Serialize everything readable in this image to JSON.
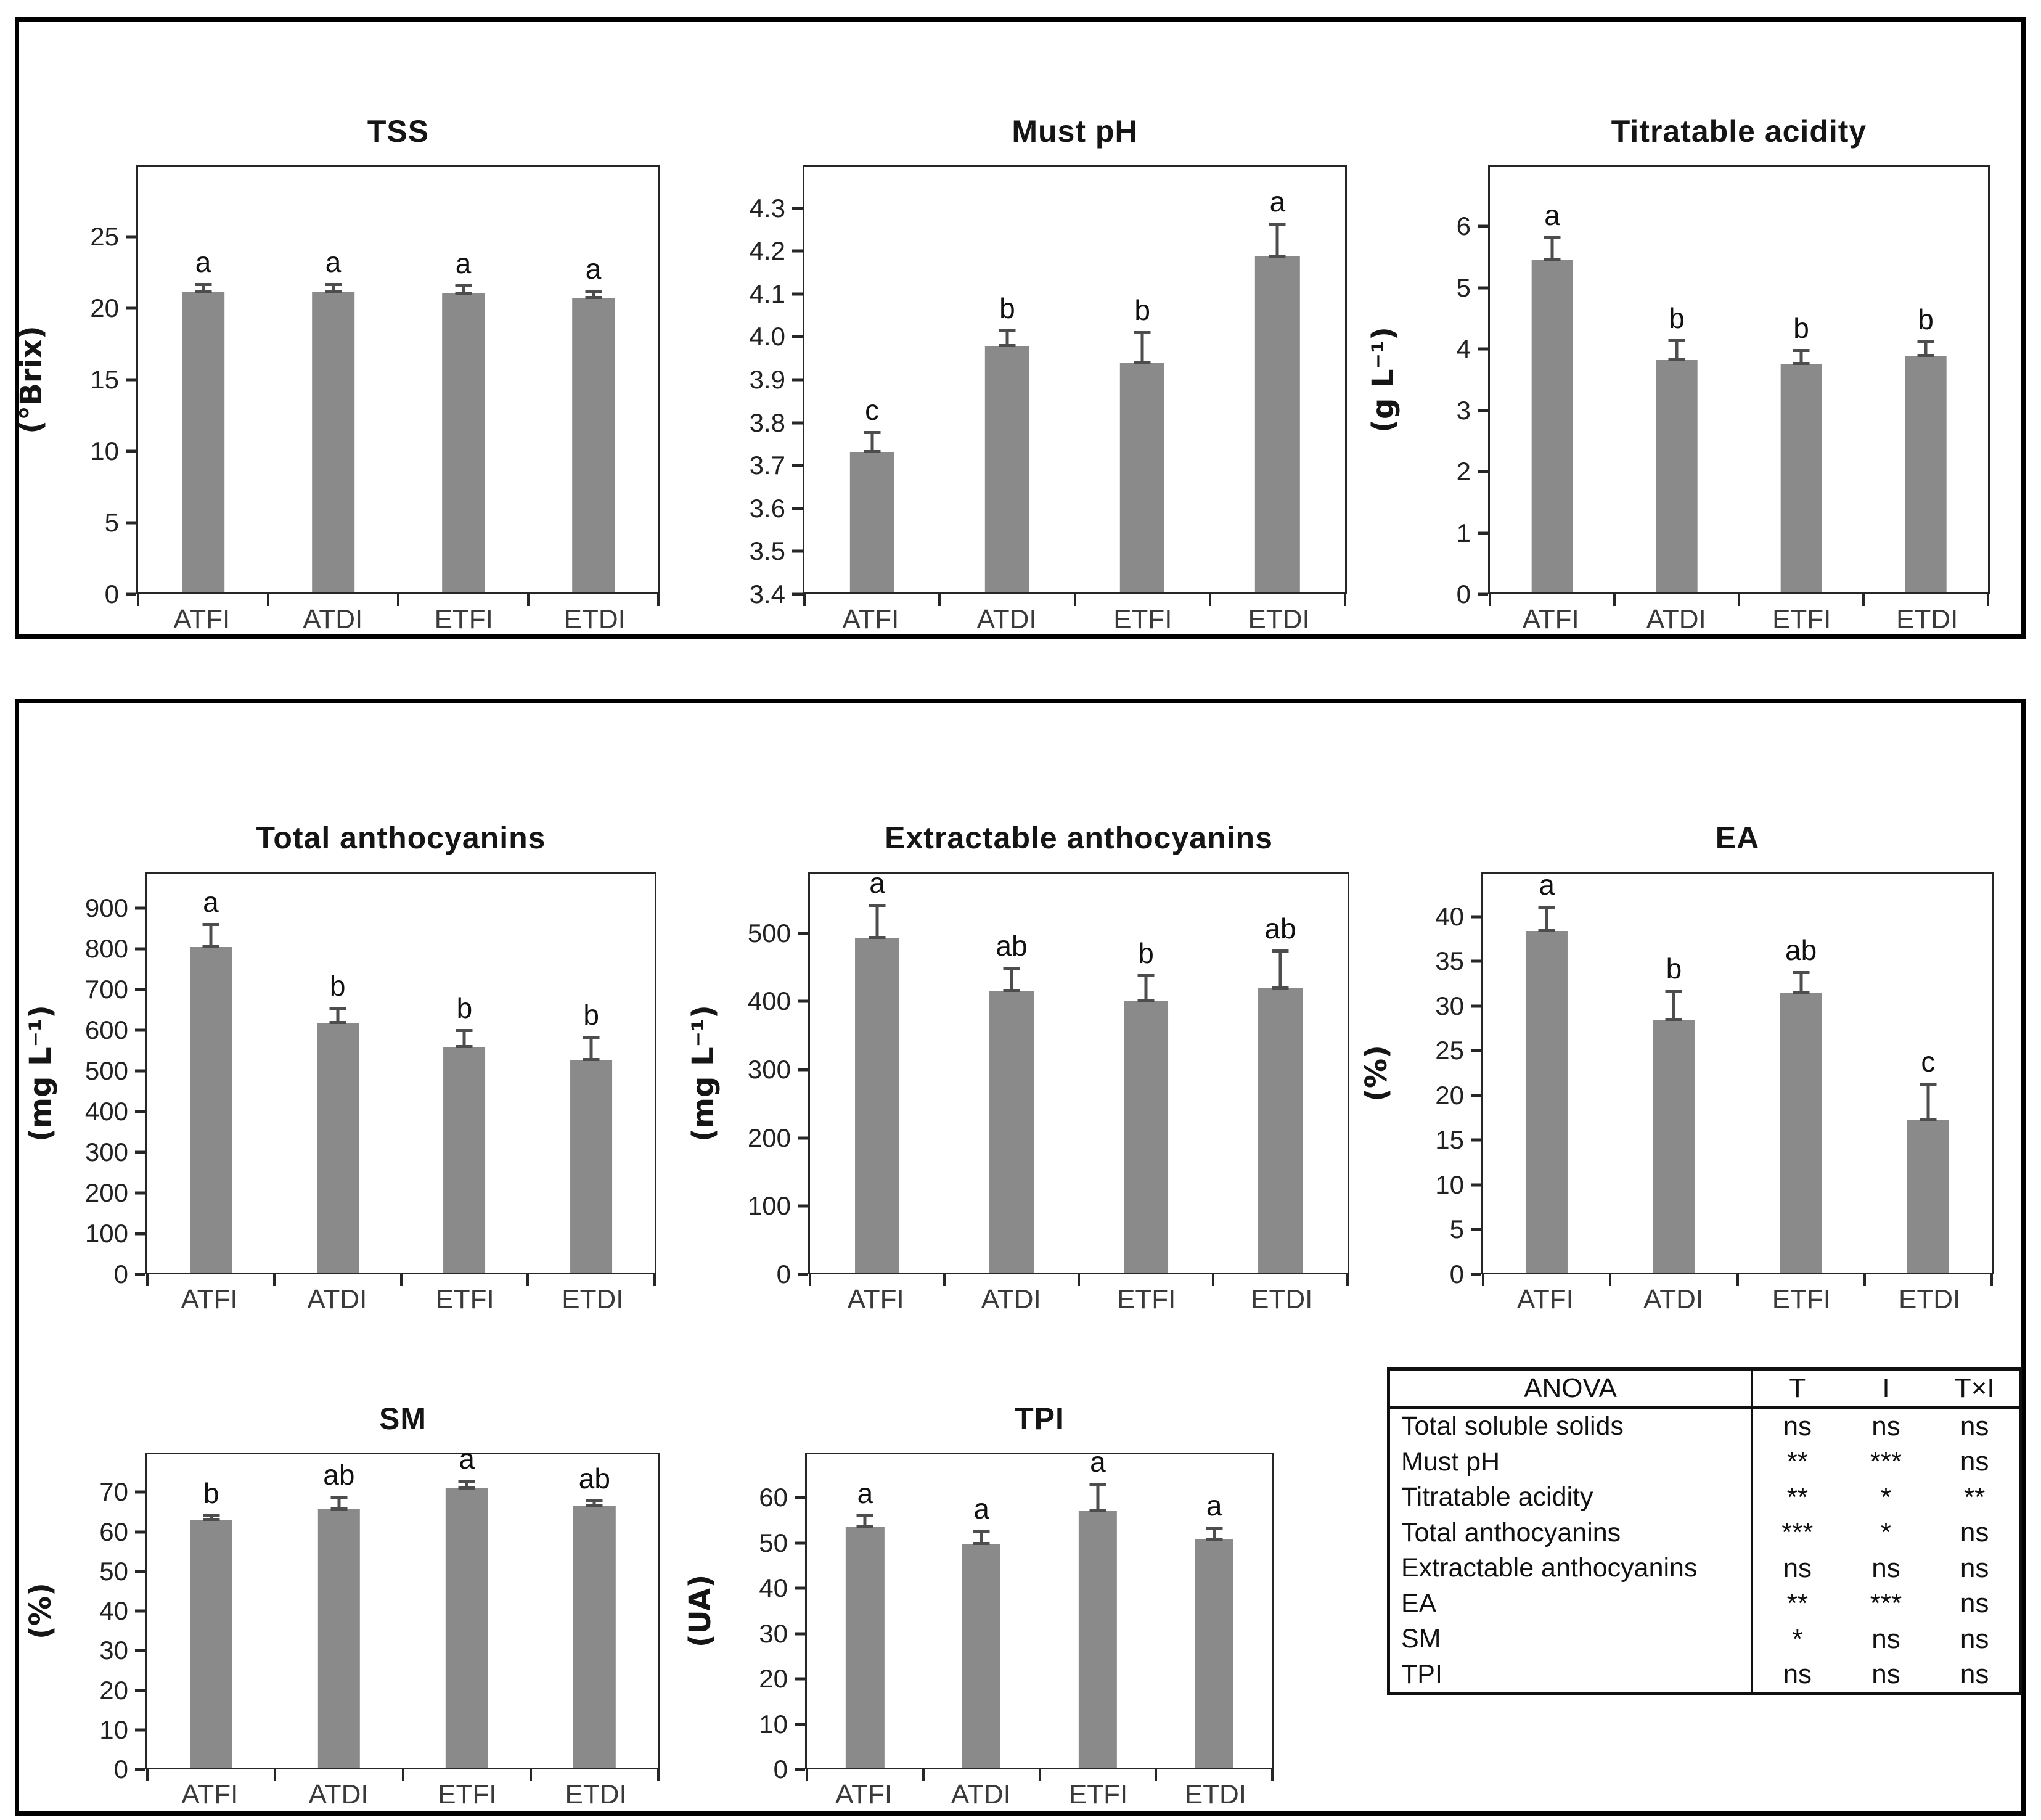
{
  "chart_data": [
    {
      "type": "bar",
      "title": "TSS",
      "ylabel": "(°Brix)",
      "categories": [
        "ATFI",
        "ATDI",
        "ETFI",
        "ETDI"
      ],
      "values": [
        21.2,
        21.2,
        21.1,
        20.8
      ],
      "errors": [
        0.5,
        0.5,
        0.5,
        0.4
      ],
      "letters": [
        "a",
        "a",
        "a",
        "a"
      ],
      "ymin": 0,
      "ymax": 30,
      "ytick_values": [
        0,
        5,
        10,
        15,
        20,
        25
      ],
      "ytick_labels": [
        "0",
        "5",
        "10",
        "15",
        "20",
        "25"
      ],
      "grid": "off",
      "legend": null
    },
    {
      "type": "bar",
      "title": "Must pH",
      "ylabel": "",
      "categories": [
        "ATFI",
        "ATDI",
        "ETFI",
        "ETDI"
      ],
      "values": [
        3.73,
        3.98,
        3.94,
        4.19
      ],
      "errors": [
        0.045,
        0.035,
        0.07,
        0.075
      ],
      "letters": [
        "c",
        "b",
        "b",
        "a"
      ],
      "ymin": 3.4,
      "ymax": 4.4,
      "ytick_values": [
        3.4,
        3.5,
        3.6,
        3.7,
        3.8,
        3.9,
        4.0,
        4.1,
        4.2,
        4.3
      ],
      "ytick_labels": [
        "3.4",
        "3.5",
        "3.6",
        "3.7",
        "3.8",
        "3.9",
        "4.0",
        "4.1",
        "4.2",
        "4.3"
      ],
      "grid": "off",
      "legend": null
    },
    {
      "type": "bar",
      "title": "Titratable acidity",
      "ylabel": "(g L⁻¹)",
      "categories": [
        "ATFI",
        "ATDI",
        "ETFI",
        "ETDI"
      ],
      "values": [
        5.48,
        3.82,
        3.76,
        3.9
      ],
      "errors": [
        0.35,
        0.32,
        0.22,
        0.22
      ],
      "letters": [
        "a",
        "b",
        "b",
        "b"
      ],
      "ymin": 0,
      "ymax": 7,
      "ytick_values": [
        0,
        1,
        2,
        3,
        4,
        5,
        6
      ],
      "ytick_labels": [
        "0",
        "1",
        "2",
        "3",
        "4",
        "5",
        "6"
      ],
      "grid": "off",
      "legend": null
    },
    {
      "type": "bar",
      "title": "Total anthocyanins",
      "ylabel": "(mg L⁻¹)",
      "categories": [
        "ATFI",
        "ATDI",
        "ETFI",
        "ETDI"
      ],
      "values": [
        808,
        620,
        560,
        528
      ],
      "errors": [
        55,
        35,
        40,
        55
      ],
      "letters": [
        "a",
        "b",
        "b",
        "b"
      ],
      "ymin": 0,
      "ymax": 990,
      "ytick_values": [
        0,
        100,
        200,
        300,
        400,
        500,
        600,
        700,
        800,
        900
      ],
      "ytick_labels": [
        "0",
        "100",
        "200",
        "300",
        "400",
        "500",
        "600",
        "700",
        "800",
        "900"
      ],
      "grid": "off",
      "legend": null
    },
    {
      "type": "bar",
      "title": "Extractable anthocyanins",
      "ylabel": "(mg L⁻¹)",
      "categories": [
        "ATFI",
        "ATDI",
        "ETFI",
        "ETDI"
      ],
      "values": [
        495,
        417,
        402,
        420
      ],
      "errors": [
        48,
        33,
        37,
        55
      ],
      "letters": [
        "a",
        "ab",
        "b",
        "ab"
      ],
      "ymin": 0,
      "ymax": 590,
      "ytick_values": [
        0,
        100,
        200,
        300,
        400,
        500
      ],
      "ytick_labels": [
        "0",
        "100",
        "200",
        "300",
        "400",
        "500"
      ],
      "grid": "off",
      "legend": null
    },
    {
      "type": "bar",
      "title": "EA",
      "ylabel": "(%)",
      "categories": [
        "ATFI",
        "ATDI",
        "ETFI",
        "ETDI"
      ],
      "values": [
        38.5,
        28.5,
        31.5,
        17.2
      ],
      "errors": [
        2.7,
        3.2,
        2.3,
        4.0
      ],
      "letters": [
        "a",
        "b",
        "ab",
        "c"
      ],
      "ymin": 0,
      "ymax": 45,
      "ytick_values": [
        0,
        5,
        10,
        15,
        20,
        25,
        30,
        35,
        40
      ],
      "ytick_labels": [
        "0",
        "5",
        "10",
        "15",
        "20",
        "25",
        "30",
        "35",
        "40"
      ],
      "grid": "off",
      "legend": null
    },
    {
      "type": "bar",
      "title": "SM",
      "ylabel": "(%)",
      "categories": [
        "ATFI",
        "ATDI",
        "ETFI",
        "ETDI"
      ],
      "values": [
        63.3,
        66,
        71.3,
        67
      ],
      "errors": [
        1.0,
        3.0,
        1.7,
        1.0
      ],
      "letters": [
        "b",
        "ab",
        "a",
        "ab"
      ],
      "ymin": 0,
      "ymax": 80,
      "ytick_values": [
        0,
        10,
        20,
        30,
        40,
        50,
        60,
        70
      ],
      "ytick_labels": [
        "0",
        "10",
        "20",
        "30",
        "40",
        "50",
        "60",
        "70"
      ],
      "grid": "off",
      "legend": null
    },
    {
      "type": "bar",
      "title": "TPI",
      "ylabel": "(UA)",
      "categories": [
        "ATFI",
        "ATDI",
        "ETFI",
        "ETDI"
      ],
      "values": [
        53.9,
        50,
        57.5,
        51
      ],
      "errors": [
        2.3,
        2.8,
        5.8,
        2.5
      ],
      "letters": [
        "a",
        "a",
        "a",
        "a"
      ],
      "ymin": 0,
      "ymax": 70,
      "ytick_values": [
        0,
        10,
        20,
        30,
        40,
        50,
        60
      ],
      "ytick_labels": [
        "0",
        "10",
        "20",
        "30",
        "40",
        "50",
        "60"
      ],
      "grid": "off",
      "legend": null
    }
  ],
  "anova_table": {
    "headers": [
      "ANOVA",
      "T",
      "I",
      "T×I"
    ],
    "rows": [
      {
        "label": "Total soluble solids",
        "T": "ns",
        "I": "ns",
        "TxI": "ns"
      },
      {
        "label": "Must pH",
        "T": "**",
        "I": "***",
        "TxI": "ns"
      },
      {
        "label": "Titratable acidity",
        "T": "**",
        "I": "*",
        "TxI": "**"
      },
      {
        "label": "Total anthocyanins",
        "T": "***",
        "I": "*",
        "TxI": "ns"
      },
      {
        "label": "Extractable anthocyanins",
        "T": "ns",
        "I": "ns",
        "TxI": "ns"
      },
      {
        "label": "EA",
        "T": "**",
        "I": "***",
        "TxI": "ns"
      },
      {
        "label": "SM",
        "T": "*",
        "I": "ns",
        "TxI": "ns"
      },
      {
        "label": "TPI",
        "T": "ns",
        "I": "ns",
        "TxI": "ns"
      }
    ]
  },
  "colors": {
    "bar": "#8a8a8a",
    "error_bar": "#4d4d4d",
    "axis": "#262626",
    "panel_border": "#000000"
  }
}
